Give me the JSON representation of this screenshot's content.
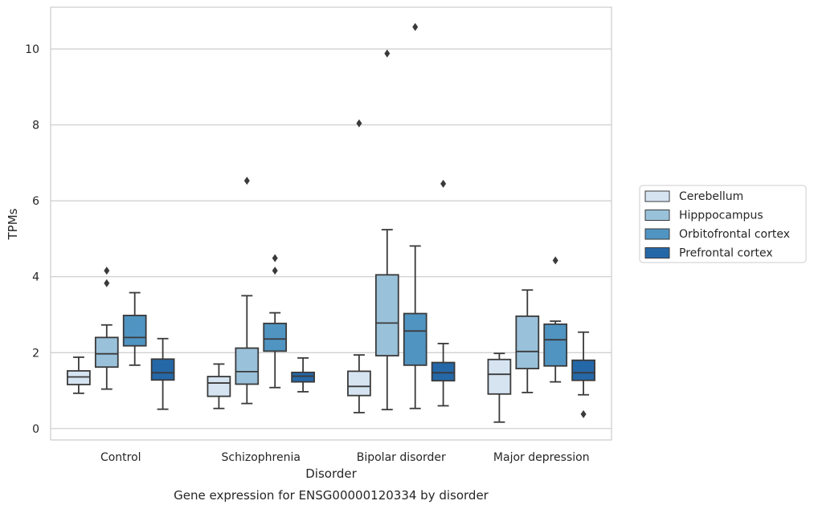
{
  "chart_data": {
    "type": "box",
    "title": "",
    "caption": "Gene expression for ENSG00000120334 by disorder",
    "xlabel": "Disorder",
    "ylabel": "TPMs",
    "ylim": [
      -0.3,
      11.1
    ],
    "yticks": [
      0,
      2,
      4,
      6,
      8,
      10
    ],
    "grid": "horizontal",
    "legend_position": "right",
    "categories": [
      "Control",
      "Schizophrenia",
      "Bipolar disorder",
      "Major depression"
    ],
    "series": [
      {
        "name": "Cerebellum",
        "color": "#d6e4f2",
        "boxes": [
          {
            "whislo": 0.93,
            "q1": 1.16,
            "med": 1.36,
            "q3": 1.52,
            "whishi": 1.88,
            "fliers": []
          },
          {
            "whislo": 0.53,
            "q1": 0.85,
            "med": 1.2,
            "q3": 1.37,
            "whishi": 1.7,
            "fliers": []
          },
          {
            "whislo": 0.42,
            "q1": 0.87,
            "med": 1.11,
            "q3": 1.51,
            "whishi": 1.94,
            "fliers": [
              8.04
            ]
          },
          {
            "whislo": 0.17,
            "q1": 0.91,
            "med": 1.43,
            "q3": 1.82,
            "whishi": 1.98,
            "fliers": []
          }
        ]
      },
      {
        "name": "Hipppocampus",
        "color": "#9ac1da",
        "boxes": [
          {
            "whislo": 1.04,
            "q1": 1.62,
            "med": 1.97,
            "q3": 2.4,
            "whishi": 2.73,
            "fliers": [
              3.83,
              4.16
            ]
          },
          {
            "whislo": 0.66,
            "q1": 1.17,
            "med": 1.5,
            "q3": 2.12,
            "whishi": 3.5,
            "fliers": [
              6.53
            ]
          },
          {
            "whislo": 0.5,
            "q1": 1.92,
            "med": 2.78,
            "q3": 4.05,
            "whishi": 5.24,
            "fliers": [
              9.88
            ]
          },
          {
            "whislo": 0.95,
            "q1": 1.58,
            "med": 2.03,
            "q3": 2.96,
            "whishi": 3.65,
            "fliers": []
          }
        ]
      },
      {
        "name": "Orbitofrontal cortex",
        "color": "#5094c2",
        "boxes": [
          {
            "whislo": 1.67,
            "q1": 2.18,
            "med": 2.4,
            "q3": 2.98,
            "whishi": 3.58,
            "fliers": []
          },
          {
            "whislo": 1.08,
            "q1": 2.04,
            "med": 2.36,
            "q3": 2.77,
            "whishi": 3.05,
            "fliers": [
              4.16,
              4.49
            ]
          },
          {
            "whislo": 0.53,
            "q1": 1.67,
            "med": 2.57,
            "q3": 3.03,
            "whishi": 4.81,
            "fliers": [
              10.58
            ]
          },
          {
            "whislo": 1.23,
            "q1": 1.65,
            "med": 2.34,
            "q3": 2.75,
            "whishi": 2.83,
            "fliers": [
              4.43
            ]
          }
        ]
      },
      {
        "name": "Prefrontal cortex",
        "color": "#2568a8",
        "boxes": [
          {
            "whislo": 0.51,
            "q1": 1.28,
            "med": 1.47,
            "q3": 1.83,
            "whishi": 2.37,
            "fliers": []
          },
          {
            "whislo": 0.97,
            "q1": 1.23,
            "med": 1.38,
            "q3": 1.48,
            "whishi": 1.86,
            "fliers": []
          },
          {
            "whislo": 0.6,
            "q1": 1.26,
            "med": 1.47,
            "q3": 1.74,
            "whishi": 2.24,
            "fliers": [
              6.45
            ]
          },
          {
            "whislo": 0.89,
            "q1": 1.27,
            "med": 1.47,
            "q3": 1.8,
            "whishi": 2.54,
            "fliers": [
              0.38
            ]
          }
        ]
      }
    ]
  }
}
